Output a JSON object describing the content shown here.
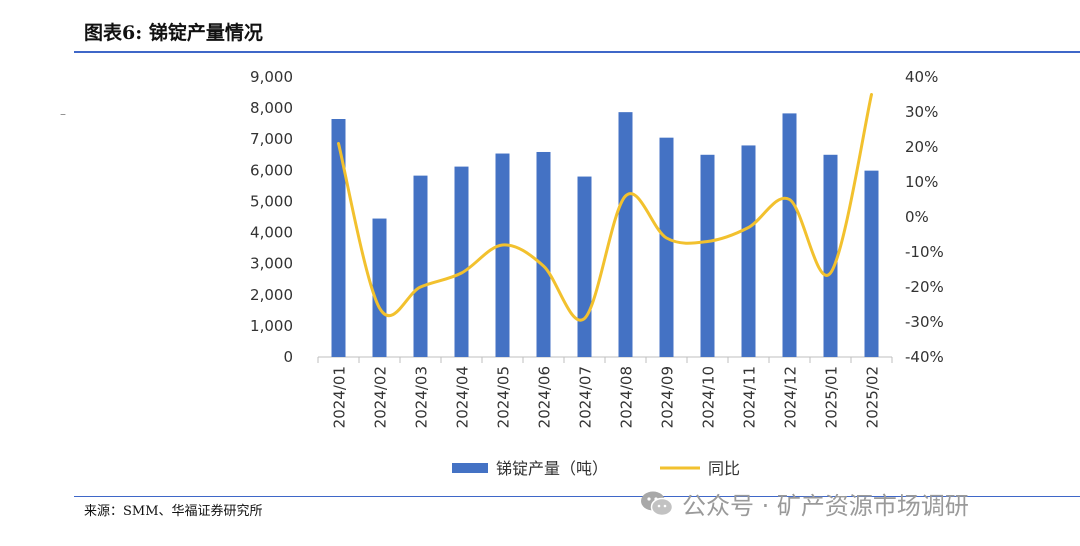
{
  "header": {
    "title": "图表6:  锑锭产量情况"
  },
  "footer": {
    "source": "来源：SMM、华福证券研究所"
  },
  "watermark": {
    "text": "公众号 · 矿产资源市场调研",
    "icon": "wechat-icon"
  },
  "chart_data": {
    "type": "bar",
    "categories": [
      "2024/01",
      "2024/02",
      "2024/03",
      "2024/04",
      "2024/05",
      "2024/06",
      "2024/07",
      "2024/08",
      "2024/09",
      "2024/10",
      "2024/11",
      "2024/12",
      "2025/01",
      "2025/02"
    ],
    "series": [
      {
        "name": "锑锭产量（吨）",
        "type": "bar",
        "axis": "left",
        "values": [
          7650,
          4450,
          5830,
          6120,
          6540,
          6590,
          5800,
          7870,
          7050,
          6500,
          6800,
          7830,
          6500,
          5990
        ],
        "color": "#4472c4"
      },
      {
        "name": "同比",
        "type": "line",
        "axis": "right",
        "values": [
          21,
          -26,
          -20,
          -16,
          -8,
          -14,
          -29,
          6,
          -6,
          -7,
          -3,
          5,
          -16,
          35
        ],
        "color": "#f2c12e"
      }
    ],
    "left_axis": {
      "min": 0,
      "max": 9000,
      "ticks": [
        "0",
        "1,000",
        "2,000",
        "3,000",
        "4,000",
        "5,000",
        "6,000",
        "7,000",
        "8,000",
        "9,000"
      ]
    },
    "right_axis": {
      "min": -40,
      "max": 40,
      "ticks": [
        "-40%",
        "-30%",
        "-20%",
        "-10%",
        "0%",
        "10%",
        "20%",
        "30%",
        "40%"
      ]
    },
    "legend_position": "bottom",
    "grid": false
  }
}
